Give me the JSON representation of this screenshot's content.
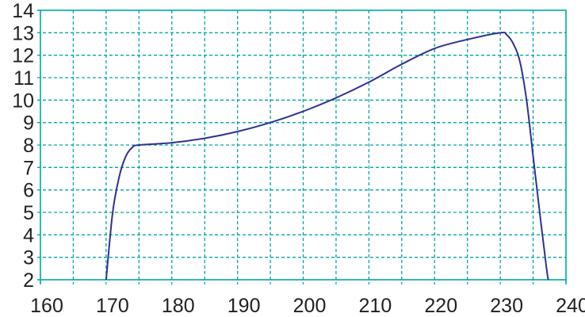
{
  "chart_data": {
    "type": "line",
    "title": "",
    "xlabel": "",
    "ylabel": "",
    "xlim": [
      160,
      240
    ],
    "ylim": [
      2,
      14
    ],
    "grid": true,
    "x_ticks": [
      160,
      170,
      180,
      190,
      200,
      210,
      220,
      230,
      240
    ],
    "y_ticks": [
      2,
      3,
      4,
      5,
      6,
      7,
      8,
      9,
      10,
      11,
      12,
      13,
      14
    ],
    "x_minor_grid_step": 5,
    "colors": {
      "grid": "#00a6a6",
      "line": "#2e3192",
      "text": "#231f20"
    },
    "series": [
      {
        "x": [
          170,
          171,
          172,
          173,
          174,
          175,
          180,
          185,
          190,
          195,
          200,
          205,
          210,
          215,
          220,
          225,
          230,
          231,
          232,
          233,
          234,
          235,
          236,
          237,
          237.3
        ],
        "y": [
          2,
          5,
          6.6,
          7.5,
          7.9,
          8,
          8.1,
          8.3,
          8.6,
          9,
          9.5,
          10.1,
          10.8,
          11.6,
          12.3,
          12.7,
          13,
          12.9,
          12.5,
          11.7,
          10,
          7.5,
          5,
          2.6,
          2
        ]
      }
    ]
  }
}
